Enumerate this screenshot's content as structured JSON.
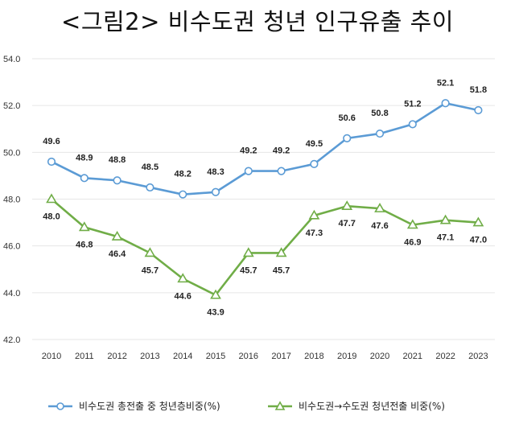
{
  "chart_data": {
    "type": "line",
    "title": "<그림2> 비수도권 청년 인구유출 추이",
    "x": [
      "2010",
      "2011",
      "2012",
      "2013",
      "2014",
      "2015",
      "2016",
      "2017",
      "2018",
      "2019",
      "2020",
      "2021",
      "2022",
      "2023"
    ],
    "ylim": [
      42.0,
      54.0
    ],
    "yticks": [
      "42.0",
      "44.0",
      "46.0",
      "48.0",
      "50.0",
      "52.0",
      "54.0"
    ],
    "grid": true,
    "legend_position": "bottom",
    "series": [
      {
        "name": "비수도권 총전출 중 청년층비중(%)",
        "color": "#5b9bd5",
        "marker": "circle",
        "values": [
          49.6,
          48.9,
          48.8,
          48.5,
          48.2,
          48.3,
          49.2,
          49.2,
          49.5,
          50.6,
          50.8,
          51.2,
          52.1,
          51.8
        ],
        "labels": [
          "49.6",
          "48.9",
          "48.8",
          "48.5",
          "48.2",
          "48.3",
          "49.2",
          "49.2",
          "49.5",
          "50.6",
          "50.8",
          "51.2",
          "52.1",
          "51.8"
        ]
      },
      {
        "name": "비수도권→수도권 청년전출 비중(%)",
        "color": "#70ad47",
        "marker": "triangle",
        "values": [
          48.0,
          46.8,
          46.4,
          45.7,
          44.6,
          43.9,
          45.7,
          45.7,
          47.3,
          47.7,
          47.6,
          46.9,
          47.1,
          47.0
        ],
        "labels": [
          "48.0",
          "46.8",
          "46.4",
          "45.7",
          "44.6",
          "43.9",
          "45.7",
          "45.7",
          "47.3",
          "47.7",
          "47.6",
          "46.9",
          "47.1",
          "47.0"
        ]
      }
    ]
  }
}
